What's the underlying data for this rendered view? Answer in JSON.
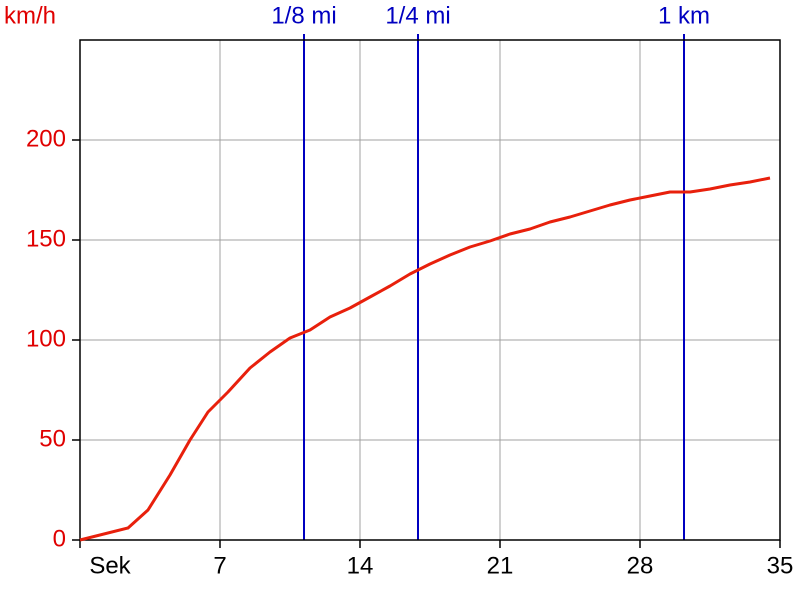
{
  "chart_data": {
    "type": "line",
    "ylabel": "km/h",
    "x": [
      0,
      2.4,
      3.4,
      4.5,
      5.5,
      6.4,
      7.4,
      8.5,
      9.5,
      10.5,
      11.5,
      12.5,
      13.5,
      14.5,
      15.5,
      16.5,
      17.5,
      18.5,
      19.5,
      20.5,
      21.5,
      22.5,
      23.5,
      24.5,
      25.5,
      26.5,
      27.5,
      28.5,
      29.5,
      30.5,
      31.5,
      32.5,
      33.5,
      34.5
    ],
    "series": [
      {
        "color": "#e8200c",
        "values": [
          0,
          6,
          15,
          32.5,
          50,
          64,
          74,
          86,
          94,
          101,
          105,
          111.5,
          116,
          121.5,
          127,
          133,
          138,
          142.5,
          146.5,
          149.5,
          153,
          155.5,
          159,
          161.5,
          164.5,
          167.5,
          170,
          172,
          174,
          174,
          175.5,
          177.5,
          179,
          181
        ]
      }
    ],
    "xlim": [
      0,
      35
    ],
    "xticks": [
      {
        "value": 0,
        "label": "Sek"
      },
      7,
      14,
      21,
      28,
      35
    ],
    "ylim": [
      0,
      250
    ],
    "yticks": [
      0,
      50,
      100,
      150,
      200
    ],
    "grid": true,
    "ylabel_color": "#e00000",
    "markers": [
      {
        "value": 11.2,
        "label": "1/8 mi"
      },
      {
        "value": 16.9,
        "label": "1/4 mi"
      },
      {
        "value": 30.2,
        "label": "1 km"
      }
    ],
    "marker_color": "#0000c0"
  }
}
